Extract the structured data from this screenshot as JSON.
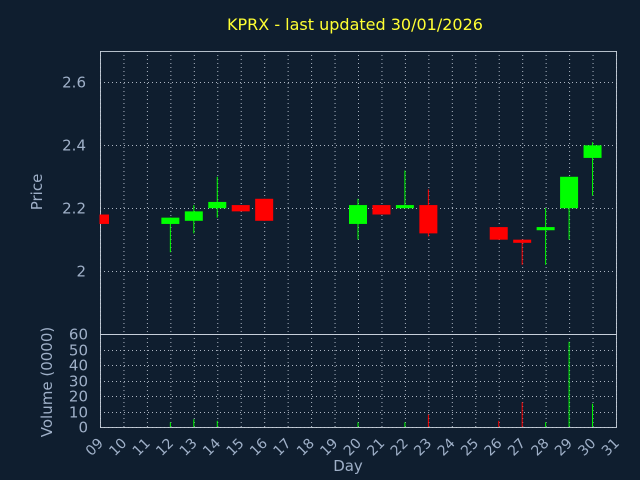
{
  "chart_data": [
    {
      "type": "candlestick",
      "title": "KPRX - last updated 30/01/2026",
      "ylabel": "Price",
      "ylim": [
        1.8,
        2.7
      ],
      "yticks": [
        "2",
        "2.2",
        "2.4",
        "2.6"
      ],
      "xlim": [
        9,
        31
      ],
      "grid": true,
      "colors": {
        "up": "#00ff00",
        "down": "#ff0000",
        "title": "#ffff33",
        "text": "#9fb0c8",
        "background": "#0f1e2f"
      },
      "candles": [
        {
          "day": 9,
          "open": 2.18,
          "close": 2.15,
          "high": 2.18,
          "low": 2.15
        },
        {
          "day": 12,
          "open": 2.15,
          "close": 2.17,
          "high": 2.17,
          "low": 2.06
        },
        {
          "day": 13,
          "open": 2.16,
          "close": 2.19,
          "high": 2.21,
          "low": 2.12
        },
        {
          "day": 14,
          "open": 2.2,
          "close": 2.22,
          "high": 2.3,
          "low": 2.17
        },
        {
          "day": 15,
          "open": 2.21,
          "close": 2.19,
          "high": 2.21,
          "low": 2.19
        },
        {
          "day": 16,
          "open": 2.23,
          "close": 2.16,
          "high": 2.23,
          "low": 2.16
        },
        {
          "day": 20,
          "open": 2.15,
          "close": 2.21,
          "high": 2.23,
          "low": 2.1
        },
        {
          "day": 21,
          "open": 2.21,
          "close": 2.18,
          "high": 2.21,
          "low": 2.18
        },
        {
          "day": 22,
          "open": 2.2,
          "close": 2.21,
          "high": 2.32,
          "low": 2.2
        },
        {
          "day": 23,
          "open": 2.21,
          "close": 2.12,
          "high": 2.26,
          "low": 2.11
        },
        {
          "day": 26,
          "open": 2.14,
          "close": 2.1,
          "high": 2.14,
          "low": 2.1
        },
        {
          "day": 27,
          "open": 2.1,
          "close": 2.09,
          "high": 2.1,
          "low": 2.02
        },
        {
          "day": 28,
          "open": 2.13,
          "close": 2.14,
          "high": 2.2,
          "low": 2.02
        },
        {
          "day": 29,
          "open": 2.2,
          "close": 2.3,
          "high": 2.3,
          "low": 2.1
        },
        {
          "day": 30,
          "open": 2.36,
          "close": 2.4,
          "high": 2.41,
          "low": 2.24
        }
      ]
    },
    {
      "type": "bar",
      "ylabel": "Volume (0000)",
      "xlabel": "Day",
      "ylim": [
        0,
        60
      ],
      "yticks": [
        "0",
        "10",
        "20",
        "30",
        "40",
        "50",
        "60"
      ],
      "xlim": [
        9,
        31
      ],
      "xticks": [
        "09",
        "10",
        "11",
        "12",
        "13",
        "14",
        "15",
        "16",
        "17",
        "18",
        "19",
        "20",
        "21",
        "22",
        "23",
        "24",
        "25",
        "26",
        "27",
        "28",
        "29",
        "30",
        "31"
      ],
      "grid": true,
      "bars": [
        {
          "day": 12,
          "value": 3,
          "direction": "up"
        },
        {
          "day": 13,
          "value": 5,
          "direction": "up"
        },
        {
          "day": 14,
          "value": 4,
          "direction": "up"
        },
        {
          "day": 20,
          "value": 3,
          "direction": "up"
        },
        {
          "day": 22,
          "value": 3,
          "direction": "up"
        },
        {
          "day": 23,
          "value": 8,
          "direction": "down"
        },
        {
          "day": 26,
          "value": 4,
          "direction": "down"
        },
        {
          "day": 27,
          "value": 16,
          "direction": "down"
        },
        {
          "day": 28,
          "value": 3,
          "direction": "up"
        },
        {
          "day": 29,
          "value": 55,
          "direction": "up"
        },
        {
          "day": 30,
          "value": 15,
          "direction": "up"
        }
      ]
    }
  ]
}
